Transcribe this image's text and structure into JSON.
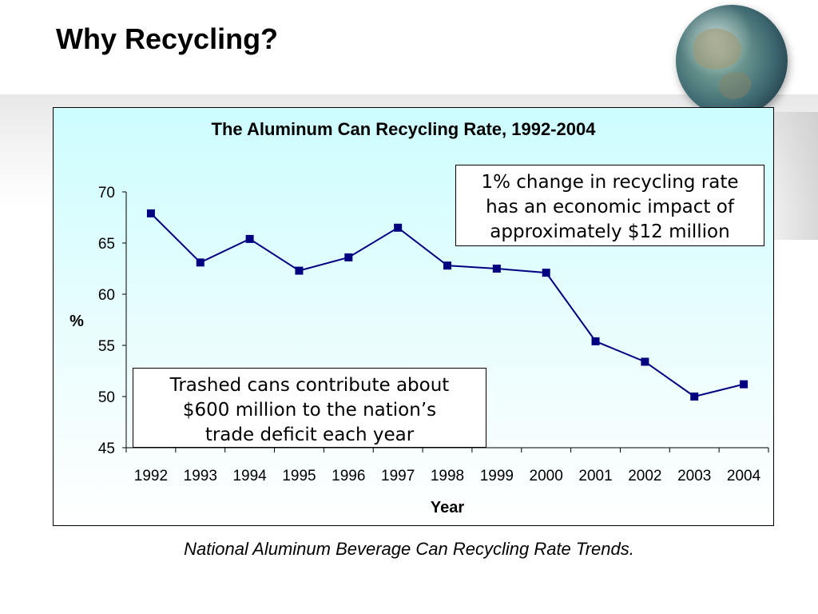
{
  "slide": {
    "title": "Why Recycling?",
    "caption": "National Aluminum Beverage Can Recycling Rate Trends."
  },
  "decor": {
    "icon": "globe-icon"
  },
  "annotations": {
    "top": [
      "1% change in recycling rate",
      "has an economic impact of",
      "approximately $12 million"
    ],
    "bottom": [
      "Trashed cans contribute about",
      "$600 million to the nation’s",
      "trade deficit each year"
    ]
  },
  "chart_data": {
    "type": "line",
    "title": "The Aluminum Can Recycling Rate, 1992-2004",
    "xlabel": "Year",
    "ylabel": "%",
    "categories": [
      "1992",
      "1993",
      "1994",
      "1995",
      "1996",
      "1997",
      "1998",
      "1999",
      "2000",
      "2001",
      "2002",
      "2003",
      "2004"
    ],
    "values": [
      67.9,
      63.1,
      65.4,
      62.3,
      63.6,
      66.5,
      62.8,
      62.5,
      62.1,
      55.4,
      53.4,
      50.0,
      51.2
    ],
    "ylim": [
      45,
      70
    ],
    "yticks": [
      "45",
      "50",
      "55",
      "60",
      "65",
      "70"
    ],
    "grid": false,
    "legend": "none",
    "series_color": "#000080"
  }
}
